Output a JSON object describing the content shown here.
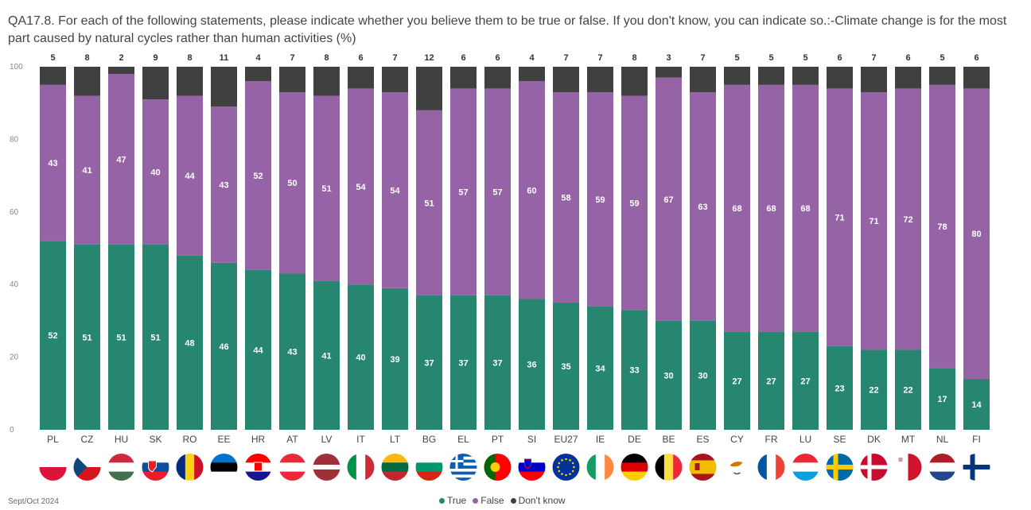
{
  "title": "QA17.8. For each of the following statements, please indicate whether you believe them to be true or false. If you don't know, you can indicate so.:-Climate change is for the most part caused by natural cycles rather than human activities (%)",
  "footer_note": "Sept/Oct 2024",
  "colors": {
    "true": "#268670",
    "false": "#9563a6",
    "dont_know": "#404041"
  },
  "chart_data": {
    "type": "bar",
    "stacked": true,
    "title": "QA17.8. For each of the following statements, please indicate whether you believe them to be true or false. If you don't know, you can indicate so.:-Climate change is for the most part caused by natural cycles rather than human activities (%)",
    "categories": [
      "PL",
      "CZ",
      "HU",
      "SK",
      "RO",
      "EE",
      "HR",
      "AT",
      "LV",
      "IT",
      "LT",
      "BG",
      "EL",
      "PT",
      "SI",
      "EU27",
      "IE",
      "DE",
      "BE",
      "ES",
      "CY",
      "FR",
      "LU",
      "SE",
      "DK",
      "MT",
      "NL",
      "FI"
    ],
    "series": [
      {
        "name": "True",
        "values": [
          52,
          51,
          51,
          51,
          48,
          46,
          44,
          43,
          41,
          40,
          39,
          37,
          37,
          37,
          36,
          35,
          34,
          33,
          30,
          30,
          27,
          27,
          27,
          23,
          22,
          22,
          17,
          14
        ]
      },
      {
        "name": "False",
        "values": [
          43,
          41,
          47,
          40,
          44,
          43,
          52,
          50,
          51,
          54,
          54,
          51,
          57,
          57,
          60,
          58,
          59,
          59,
          67,
          63,
          68,
          68,
          68,
          71,
          71,
          72,
          78,
          80
        ]
      },
      {
        "name": "Don't know",
        "values": [
          5,
          8,
          2,
          9,
          8,
          11,
          4,
          7,
          8,
          6,
          7,
          12,
          6,
          6,
          4,
          7,
          7,
          8,
          3,
          7,
          5,
          5,
          5,
          6,
          7,
          6,
          5,
          6
        ]
      }
    ],
    "ylim": [
      0,
      100
    ],
    "yticks": [
      0,
      20,
      40,
      60,
      80,
      100
    ],
    "grid": false,
    "legend": "bottom",
    "flags": [
      "PL",
      "CZ",
      "HU",
      "SK",
      "RO",
      "EE",
      "HR",
      "AT",
      "LV",
      "IT",
      "LT",
      "BG",
      "EL",
      "PT",
      "SI",
      "EU27",
      "IE",
      "DE",
      "BE",
      "ES",
      "CY",
      "FR",
      "LU",
      "SE",
      "DK",
      "MT",
      "NL",
      "FI"
    ]
  }
}
